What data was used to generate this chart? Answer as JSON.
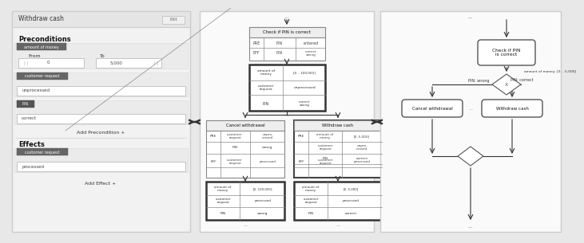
{
  "fig_width": 6.96,
  "fig_height": 2.85,
  "bg_color": "#e8e8e8",
  "panel1": {
    "title": "Withdraw cash",
    "edit_label": "Edit",
    "preconditions_label": "Preconditions",
    "amount_label": "amount of money",
    "from_label": "From",
    "to_label": "To",
    "from_val": "0",
    "to_val": "5,000",
    "customer_request_label": "customer request",
    "unprocessed_label": "unprocessed",
    "pin_label": "PIN",
    "correct_label": "correct",
    "add_precondition": "Add Precondition +",
    "effects_label": "Effects",
    "customer_request_eff": "customer request",
    "processed_label": "processed",
    "add_effect": "Add Effect +"
  },
  "panel2": {
    "top_dots": "...",
    "node1_title": "Check if PIN is correct",
    "cancel_title": "Cancel withdrawal",
    "withdraw_title": "Withdraw cash"
  },
  "panel3": {
    "top_dots": "...",
    "bottom_dots": "...",
    "check_pin": "Check if PIN\nis correct",
    "pin_wrong": "PIN: wrong",
    "pin_correct": "PIN: correct",
    "amount_range": "amount of money: [0 .. 5,000]",
    "cancel_label": "Cancel withdrawal",
    "withdraw_label": "Withdraw cash",
    "middle_dots": "..."
  }
}
